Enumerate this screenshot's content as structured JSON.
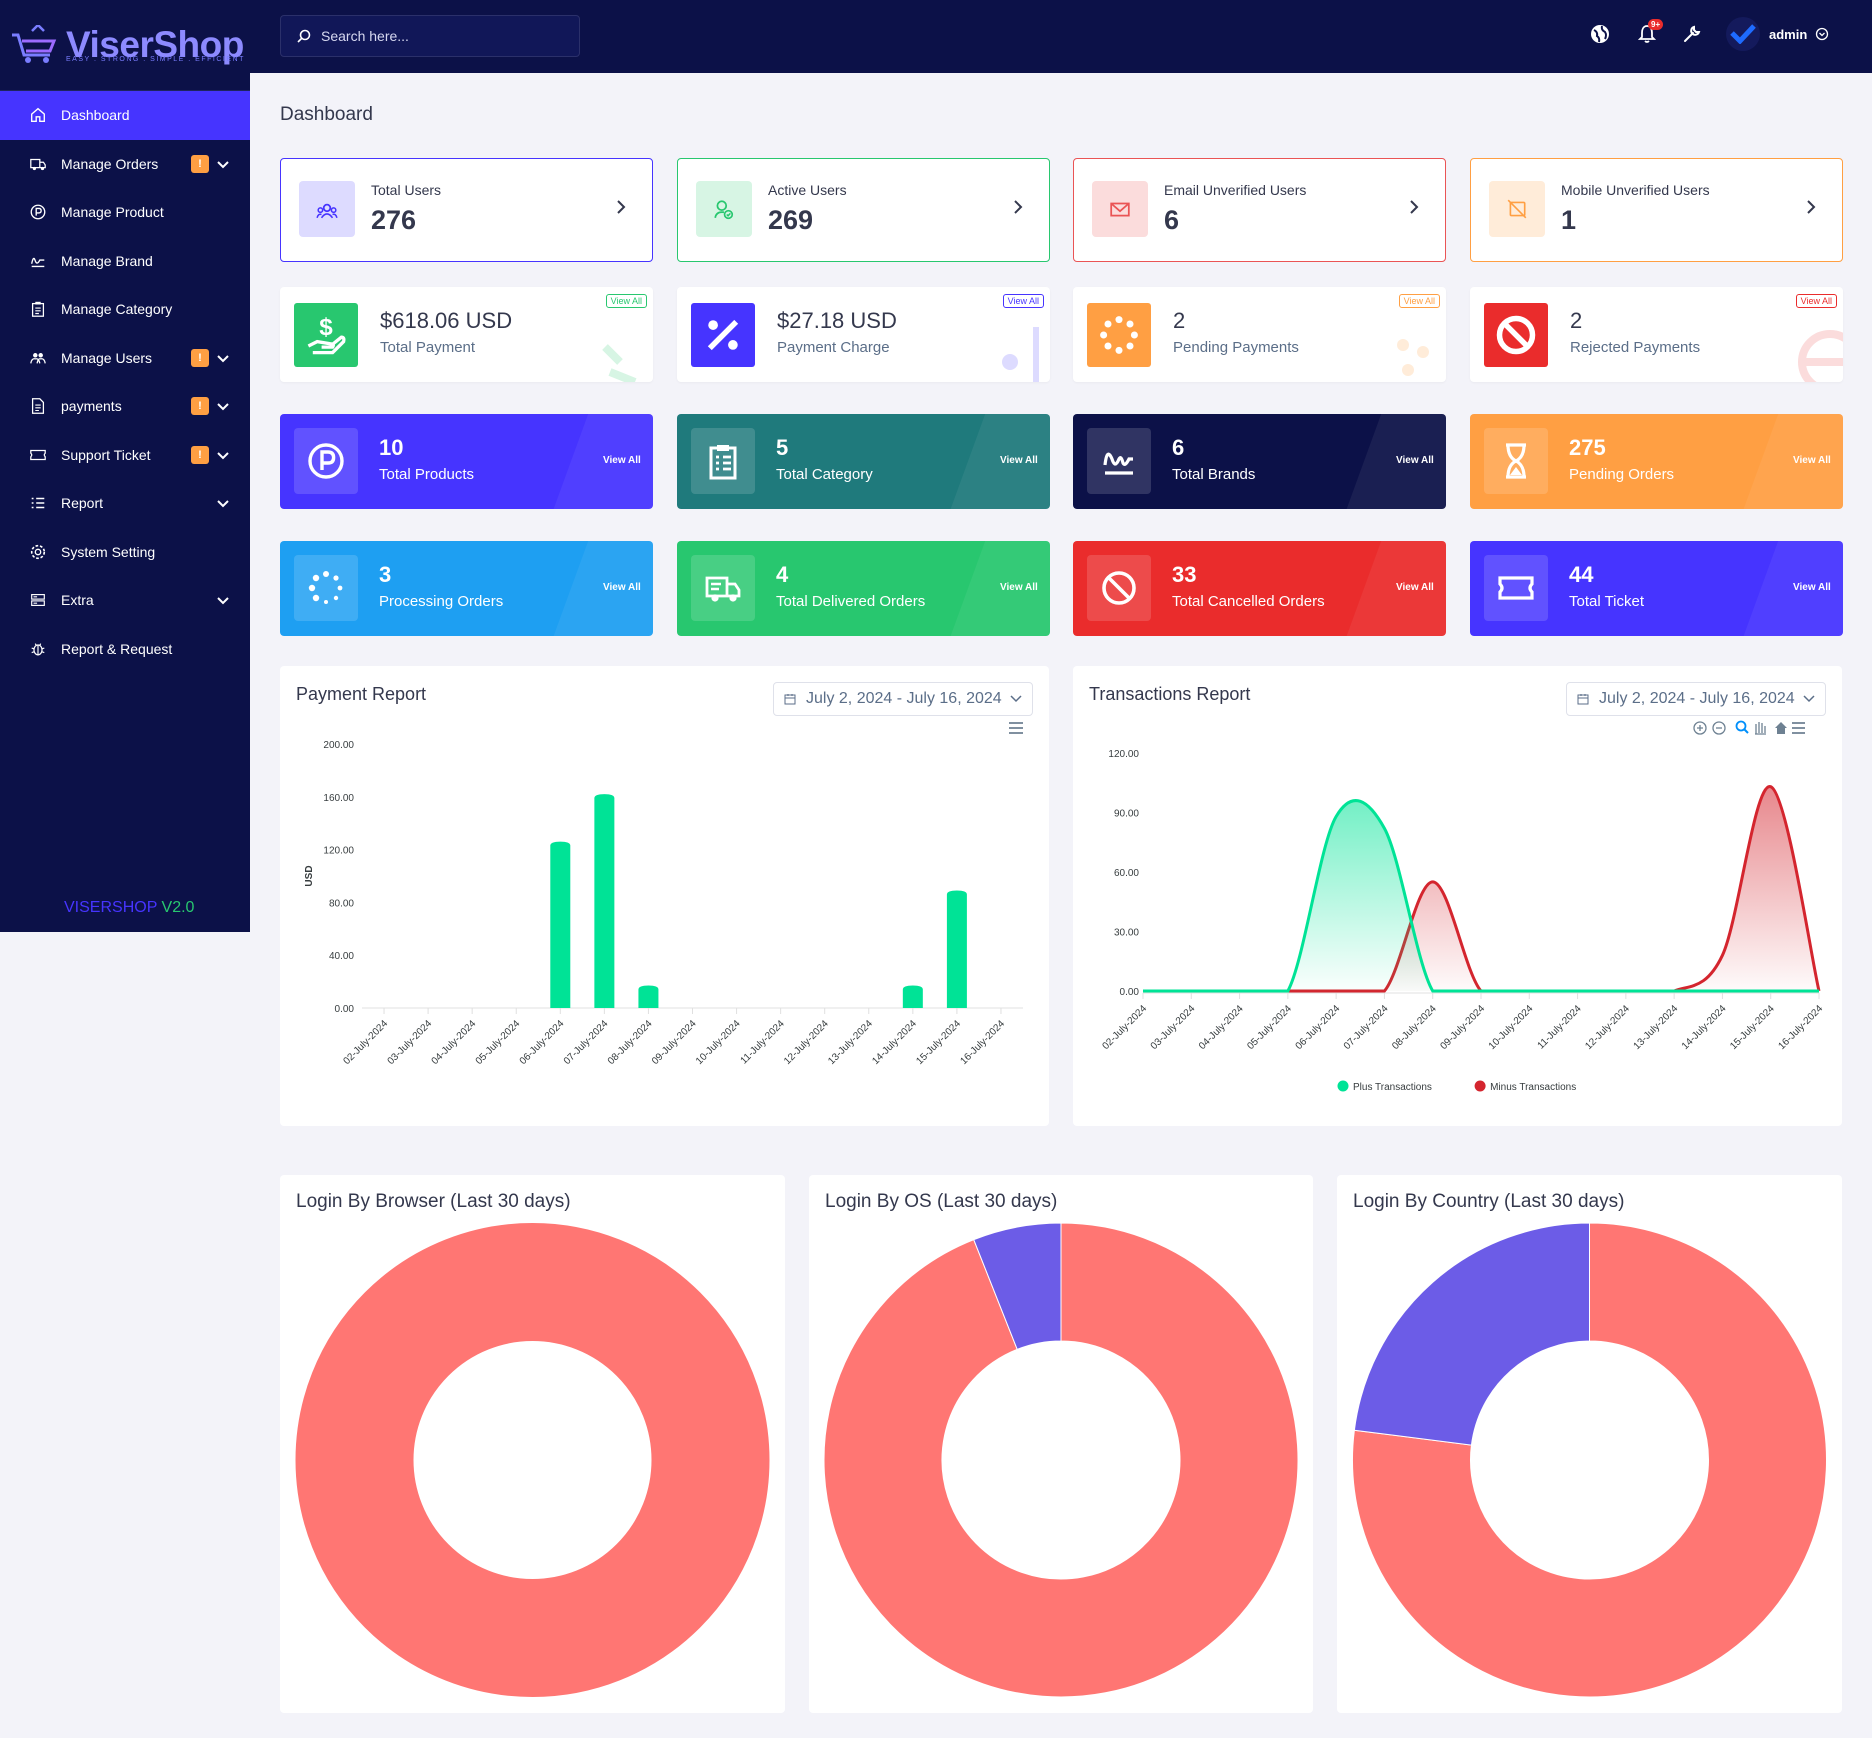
{
  "app": {
    "logo_text": "ViserShop",
    "logo_tagline": "EASY . STRONG . SIMPLE . EFFICIENT",
    "version_name": "VISERSHOP",
    "version_num": "V2.0"
  },
  "sidebar": {
    "items": [
      {
        "label": "Dashboard",
        "icon": "home-icon",
        "active": true
      },
      {
        "label": "Manage Orders",
        "icon": "truck-icon",
        "warn": "!",
        "chevron": true
      },
      {
        "label": "Manage Product",
        "icon": "product-p-icon"
      },
      {
        "label": "Manage Brand",
        "icon": "signature-icon"
      },
      {
        "label": "Manage Category",
        "icon": "clipboard-icon"
      },
      {
        "label": "Manage Users",
        "icon": "users-icon",
        "warn": "!",
        "chevron": true
      },
      {
        "label": "payments",
        "icon": "file-invoice-icon",
        "warn": "!",
        "chevron": true
      },
      {
        "label": "Support Ticket",
        "icon": "ticket-icon",
        "warn": "!",
        "chevron": true
      },
      {
        "label": "Report",
        "icon": "list-icon",
        "chevron": true
      },
      {
        "label": "System Setting",
        "icon": "gear-icon"
      },
      {
        "label": "Extra",
        "icon": "server-icon",
        "chevron": true
      },
      {
        "label": "Report & Request",
        "icon": "bug-icon"
      }
    ]
  },
  "topbar": {
    "search_placeholder": "Search here...",
    "notif_badge": "9+",
    "username": "admin"
  },
  "page": {
    "title": "Dashboard"
  },
  "widgets_row1": [
    {
      "label": "Total Users",
      "value": "276",
      "color": "#4634ff",
      "bg": "#dddbff"
    },
    {
      "label": "Active Users",
      "value": "269",
      "color": "#28c76f",
      "bg": "#d7f5e4"
    },
    {
      "label": "Email Unverified Users",
      "value": "6",
      "color": "#ea5455",
      "bg": "#fbdcdc"
    },
    {
      "label": "Mobile Unverified Users",
      "value": "1",
      "color": "#ff9f43",
      "bg": "#ffecd9"
    }
  ],
  "widgets_row2": [
    {
      "value": "$618.06 USD",
      "label": "Total Payment",
      "view_all": "View All",
      "color": "#28c76f"
    },
    {
      "value": "$27.18 USD",
      "label": "Payment Charge",
      "view_all": "View All",
      "color": "#4634ff"
    },
    {
      "value": "2",
      "label": "Pending Payments",
      "view_all": "View All",
      "color": "#ff9f43"
    },
    {
      "value": "2",
      "label": "Rejected Payments",
      "view_all": "View All",
      "color": "#ea2c2c"
    }
  ],
  "widgets_row3": [
    {
      "value": "10",
      "label": "Total Products",
      "view_all": "View All",
      "color": "#4634ff"
    },
    {
      "value": "5",
      "label": "Total Category",
      "view_all": "View All",
      "color": "#1f7a7c"
    },
    {
      "value": "6",
      "label": "Total Brands",
      "view_all": "View All",
      "color": "#0c1148"
    },
    {
      "value": "275",
      "label": "Pending Orders",
      "view_all": "View All",
      "color": "#ff9f43"
    }
  ],
  "widgets_row4": [
    {
      "value": "3",
      "label": "Processing Orders",
      "view_all": "View All",
      "color": "#1e9ff2"
    },
    {
      "value": "4",
      "label": "Total Delivered Orders",
      "view_all": "View All",
      "color": "#28c76f"
    },
    {
      "value": "33",
      "label": "Total Cancelled Orders",
      "view_all": "View All",
      "color": "#ea2c2c"
    },
    {
      "value": "44",
      "label": "Total Ticket",
      "view_all": "View All",
      "color": "#4634ff"
    }
  ],
  "payment_report": {
    "title": "Payment Report",
    "date_range": "July 2, 2024 - July 16, 2024"
  },
  "transactions_report": {
    "title": "Transactions Report",
    "date_range": "July 2, 2024 - July 16, 2024"
  },
  "chart_data": [
    {
      "type": "bar",
      "title": "Payment Report",
      "ylabel": "USD",
      "ylim": [
        0,
        200
      ],
      "yticks": [
        "200.00",
        "160.00",
        "120.00",
        "80.00",
        "40.00",
        "0.00"
      ],
      "categories": [
        "02-July-2024",
        "03-July-2024",
        "04-July-2024",
        "05-July-2024",
        "06-July-2024",
        "07-July-2024",
        "08-July-2024",
        "09-July-2024",
        "10-July-2024",
        "11-July-2024",
        "12-July-2024",
        "13-July-2024",
        "14-July-2024",
        "15-July-2024",
        "16-July-2024"
      ],
      "values": [
        0,
        0,
        0,
        0,
        126,
        162,
        17,
        0,
        0,
        0,
        0,
        0,
        17,
        89,
        0
      ],
      "color": "#00e396"
    },
    {
      "type": "area",
      "title": "Transactions Report",
      "ylim": [
        0,
        120
      ],
      "yticks": [
        "120.00",
        "90.00",
        "60.00",
        "30.00",
        "0.00"
      ],
      "categories": [
        "02-July-2024",
        "03-July-2024",
        "04-July-2024",
        "05-July-2024",
        "06-July-2024",
        "07-July-2024",
        "08-July-2024",
        "09-July-2024",
        "10-July-2024",
        "11-July-2024",
        "12-July-2024",
        "13-July-2024",
        "14-July-2024",
        "15-July-2024",
        "16-July-2024"
      ],
      "series": [
        {
          "name": "Plus Transactions",
          "color": "#00e396",
          "values": [
            0,
            0,
            0,
            0,
            88,
            82,
            0,
            0,
            0,
            0,
            0,
            0,
            0,
            0,
            0
          ]
        },
        {
          "name": "Minus Transactions",
          "color": "#d4252e",
          "values": [
            0,
            0,
            0,
            0,
            0,
            0,
            55,
            0,
            0,
            0,
            0,
            0,
            18,
            103,
            0
          ]
        }
      ],
      "legend": "bottom"
    },
    {
      "type": "pie",
      "title": "Login By Browser (Last 30 days)",
      "donut": true,
      "slices": [
        {
          "value": 100,
          "color": "#ff7673"
        }
      ]
    },
    {
      "type": "pie",
      "title": "Login By OS (Last 30 days)",
      "donut": true,
      "slices": [
        {
          "value": 94,
          "color": "#ff7673"
        },
        {
          "value": 6,
          "color": "#6c5ce7"
        }
      ]
    },
    {
      "type": "pie",
      "title": "Login By Country (Last 30 days)",
      "donut": true,
      "slices": [
        {
          "value": 77,
          "color": "#ff7673"
        },
        {
          "value": 23,
          "color": "#6c5ce7"
        }
      ]
    }
  ]
}
